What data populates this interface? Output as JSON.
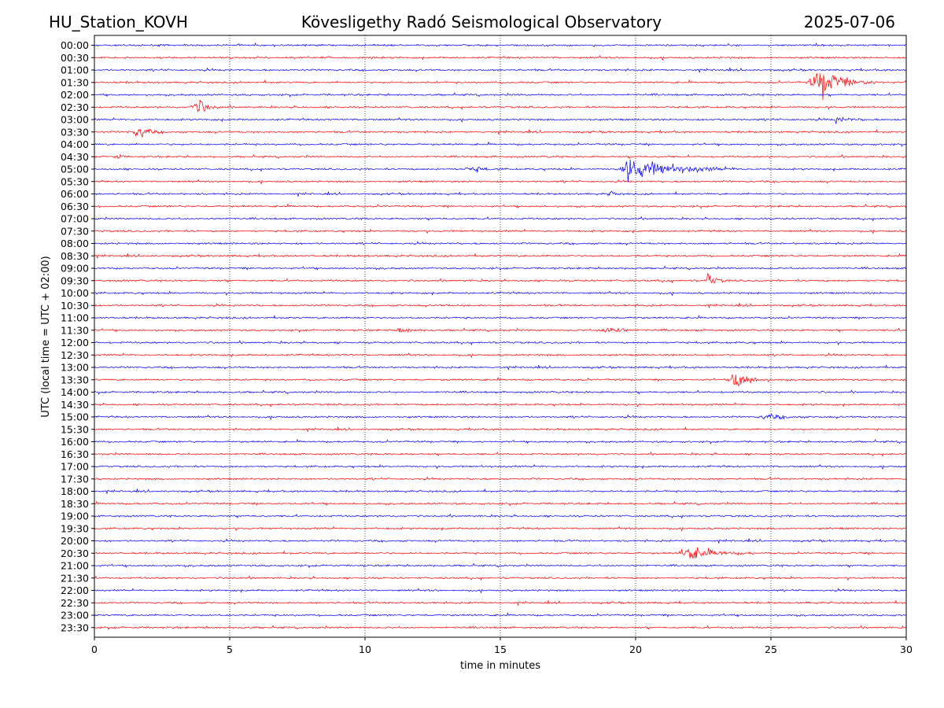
{
  "header": {
    "station": "HU_Station_KOVH",
    "observatory": "Kövesligethy Radó Seismological Observatory",
    "date": "2025-07-06"
  },
  "chart_data": {
    "type": "line",
    "title": "Kövesligethy Radó Seismological Observatory",
    "xlabel": "time in minutes",
    "ylabel": "UTC (local time = UTC + 02:00)",
    "xlim": [
      0,
      30
    ],
    "x_ticks": [
      "0",
      "5",
      "10",
      "15",
      "20",
      "25",
      "30"
    ],
    "grid": "vertical dotted at 5-minute intervals",
    "row_labels": [
      "00:00",
      "00:30",
      "01:00",
      "01:30",
      "02:00",
      "02:30",
      "03:00",
      "03:30",
      "04:00",
      "04:30",
      "05:00",
      "05:30",
      "06:00",
      "06:30",
      "07:00",
      "07:30",
      "08:00",
      "08:30",
      "09:00",
      "09:30",
      "10:00",
      "10:30",
      "11:00",
      "11:30",
      "12:00",
      "12:30",
      "13:00",
      "13:30",
      "14:00",
      "14:30",
      "15:00",
      "15:30",
      "16:00",
      "16:30",
      "17:00",
      "17:30",
      "18:00",
      "18:30",
      "19:00",
      "19:30",
      "20:00",
      "20:30",
      "21:00",
      "21:30",
      "22:00",
      "22:30",
      "23:00",
      "23:30"
    ],
    "trace_colors": [
      "#0000ff",
      "#ff0000"
    ],
    "events": [
      {
        "row": "01:30",
        "start_min": 26.3,
        "peak_min": 26.9,
        "end_min": 29.2,
        "amplitude": 1.0
      },
      {
        "row": "02:30",
        "start_min": 3.5,
        "peak_min": 3.9,
        "end_min": 4.8,
        "amplitude": 0.55
      },
      {
        "row": "03:00",
        "start_min": 27.3,
        "peak_min": 27.4,
        "end_min": 28.8,
        "amplitude": 0.22
      },
      {
        "row": "03:30",
        "start_min": 1.2,
        "peak_min": 1.8,
        "end_min": 2.6,
        "amplitude": 0.4
      },
      {
        "row": "04:30",
        "start_min": 0.7,
        "peak_min": 0.9,
        "end_min": 1.2,
        "amplitude": 0.2
      },
      {
        "row": "05:00",
        "start_min": 19.4,
        "peak_min": 19.5,
        "end_min": 24.0,
        "amplitude": 1.0
      },
      {
        "row": "05:00",
        "start_min": 13.5,
        "peak_min": 14.2,
        "end_min": 14.8,
        "amplitude": 0.18
      },
      {
        "row": "06:00",
        "start_min": 18.9,
        "peak_min": 19.2,
        "end_min": 19.5,
        "amplitude": 0.25
      },
      {
        "row": "09:30",
        "start_min": 22.6,
        "peak_min": 22.65,
        "end_min": 23.4,
        "amplitude": 0.6
      },
      {
        "row": "11:30",
        "start_min": 11.2,
        "peak_min": 11.3,
        "end_min": 12.2,
        "amplitude": 0.28
      },
      {
        "row": "11:30",
        "start_min": 18.5,
        "peak_min": 19.3,
        "end_min": 20.0,
        "amplitude": 0.3
      },
      {
        "row": "13:30",
        "start_min": 23.5,
        "peak_min": 23.6,
        "end_min": 25.0,
        "amplitude": 0.95
      },
      {
        "row": "15:00",
        "start_min": 24.5,
        "peak_min": 24.9,
        "end_min": 26.5,
        "amplitude": 0.2
      },
      {
        "row": "20:30",
        "start_min": 21.5,
        "peak_min": 22.0,
        "end_min": 24.5,
        "amplitude": 0.55
      }
    ]
  }
}
